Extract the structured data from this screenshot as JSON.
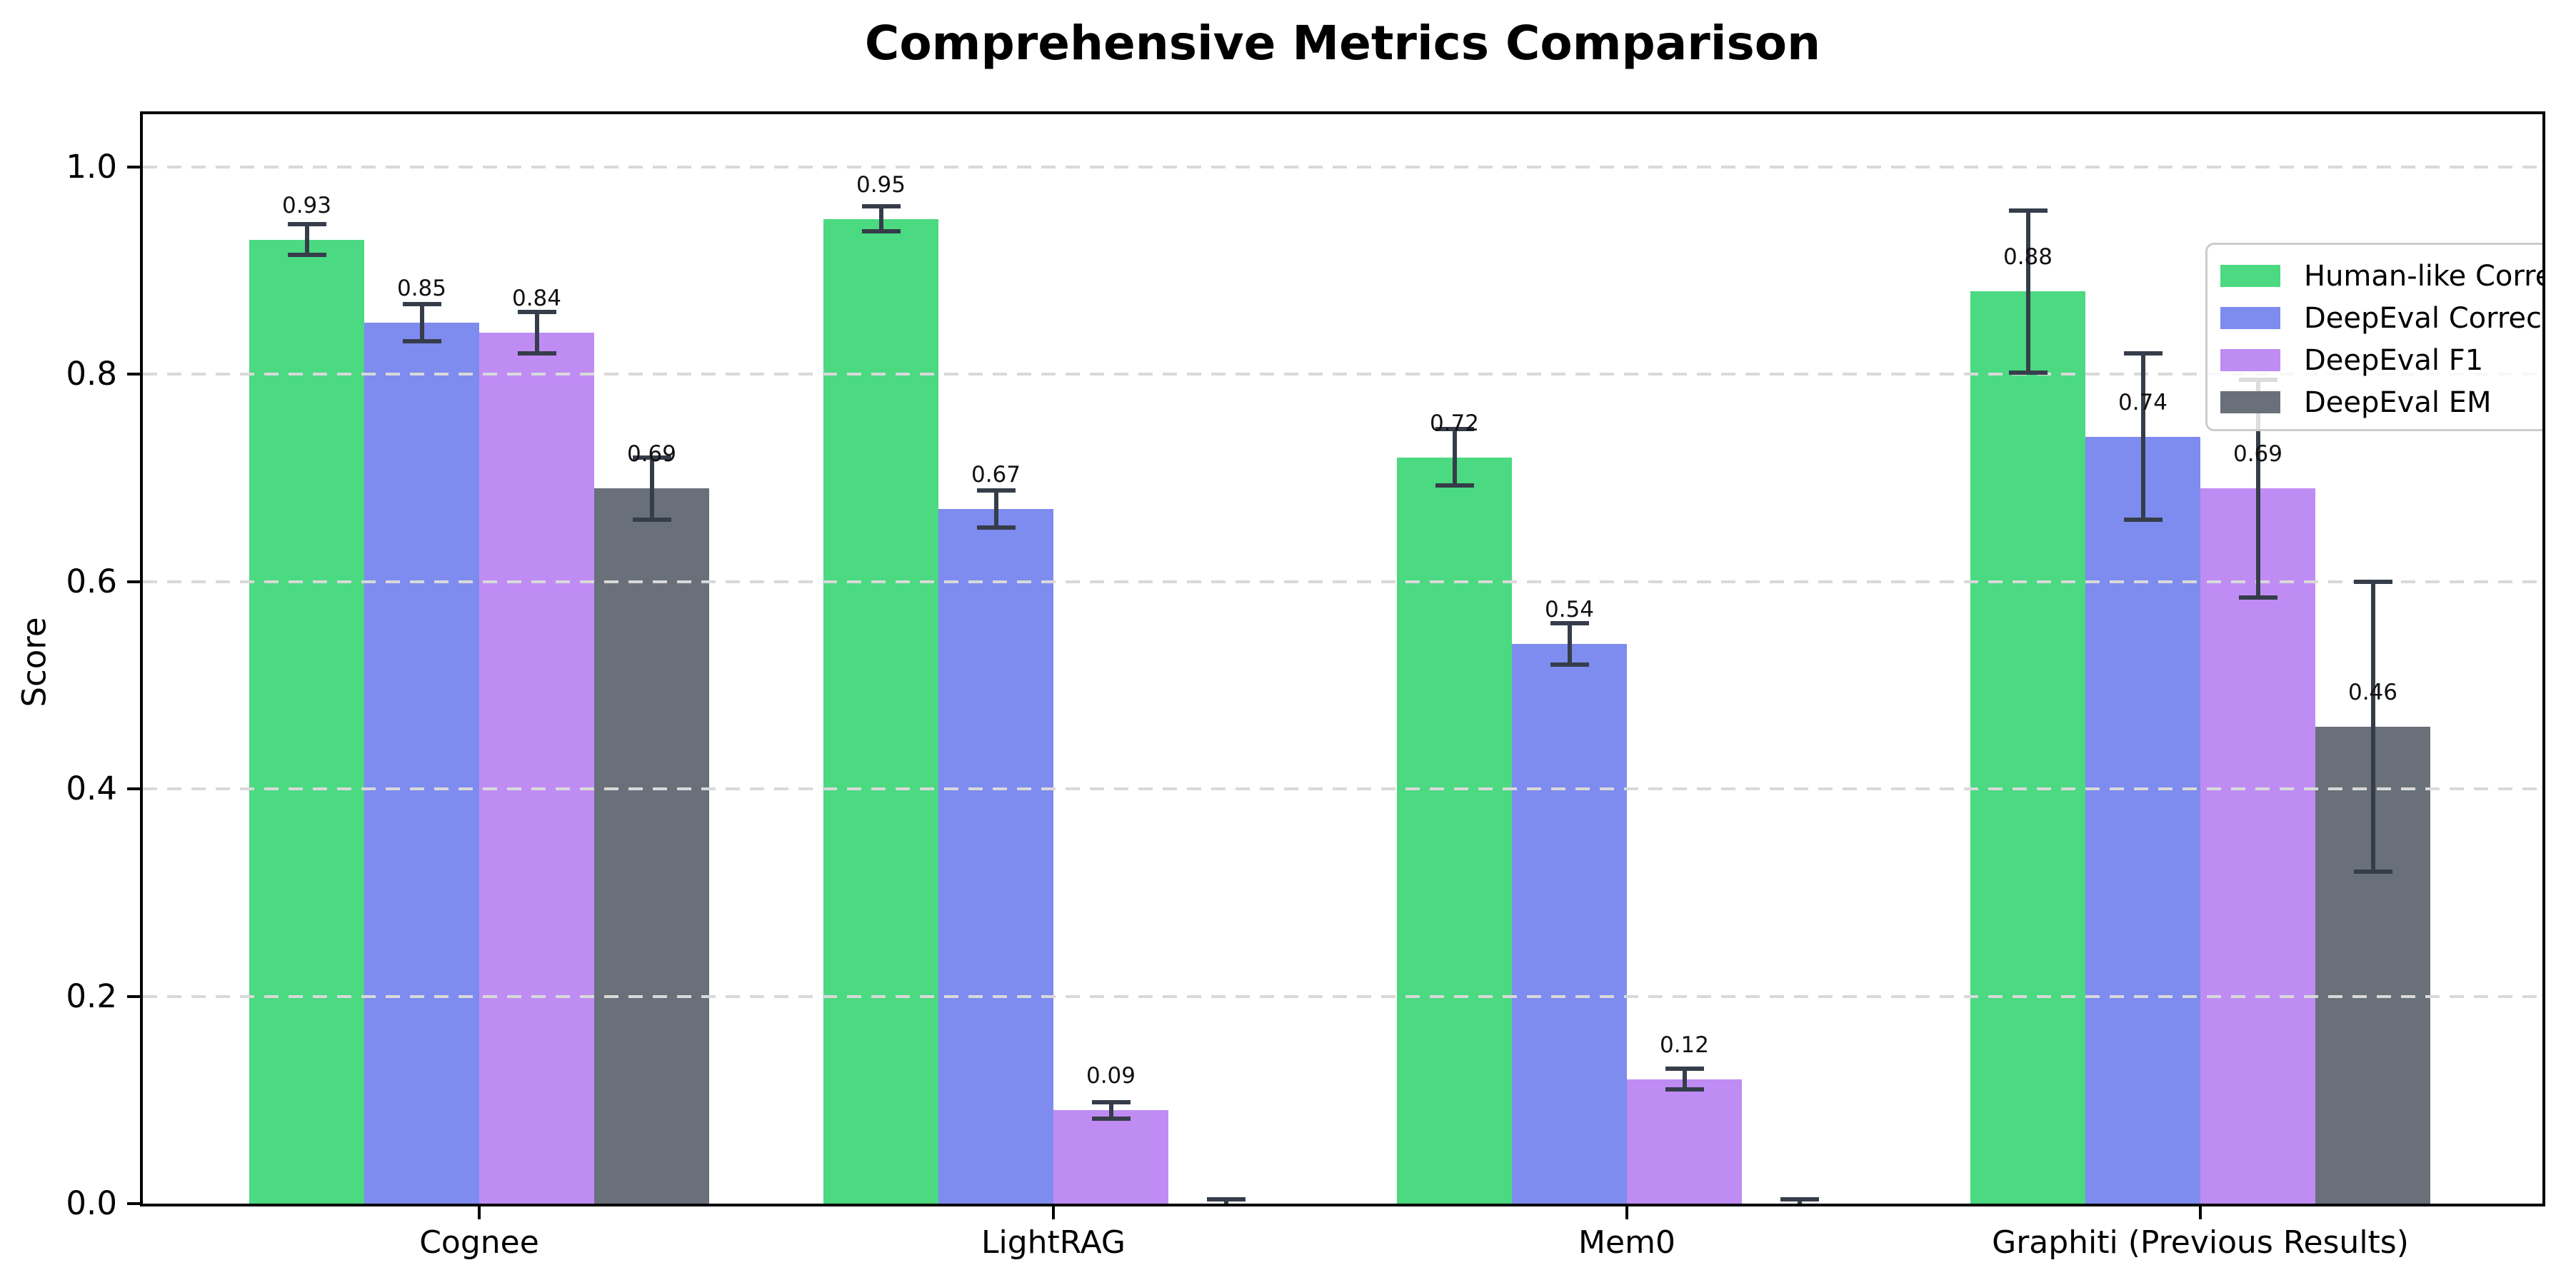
{
  "chart_data": {
    "type": "bar",
    "title": "Comprehensive Metrics Comparison",
    "ylabel": "Score",
    "xlabel": "",
    "categories": [
      "Cognee",
      "LightRAG",
      "Mem0",
      "Graphiti (Previous Results)"
    ],
    "series": [
      {
        "name": "Human-like Correctness",
        "color": "#4bd981",
        "values": [
          0.93,
          0.95,
          0.72,
          0.88
        ],
        "errors": [
          0.015,
          0.012,
          0.027,
          0.078
        ],
        "bar_labels": [
          "0.93",
          "0.95",
          "0.72",
          "0.88"
        ]
      },
      {
        "name": "DeepEval Correctness",
        "color": "#7e8bef",
        "values": [
          0.85,
          0.67,
          0.54,
          0.74
        ],
        "errors": [
          0.018,
          0.018,
          0.02,
          0.08
        ],
        "bar_labels": [
          "0.85",
          "0.67",
          "0.54",
          "0.74"
        ]
      },
      {
        "name": "DeepEval F1",
        "color": "#bf8cf4",
        "values": [
          0.84,
          0.09,
          0.12,
          0.69
        ],
        "errors": [
          0.02,
          0.008,
          0.01,
          0.105
        ],
        "bar_labels": [
          "0.84",
          "0.09",
          "0.12",
          "0.69"
        ]
      },
      {
        "name": "DeepEval EM",
        "color": "#6a7079",
        "values": [
          0.69,
          0.0,
          0.0,
          0.46
        ],
        "errors": [
          0.03,
          0.004,
          0.004,
          0.14
        ],
        "bar_labels": [
          "0.69",
          "",
          "",
          "0.46"
        ]
      }
    ],
    "yticks": [
      0.0,
      0.2,
      0.4,
      0.6,
      0.8,
      1.0
    ],
    "ytick_labels": [
      "0.0",
      "0.2",
      "0.4",
      "0.6",
      "0.8",
      "1.0"
    ],
    "ylim": [
      0,
      1.051
    ],
    "grid": {
      "axis": "y",
      "style": "dashed",
      "color": "#d9d9d9",
      "on_top_of_bars": true
    },
    "legend": {
      "position": "upper right"
    },
    "error_bar_color": "#363d4a",
    "label_offset_units": 0.02
  },
  "styles": {
    "background": "#ffffff",
    "axis_color": "#000000",
    "text_color": "#000000",
    "grid_color": "#d9d9d9"
  }
}
